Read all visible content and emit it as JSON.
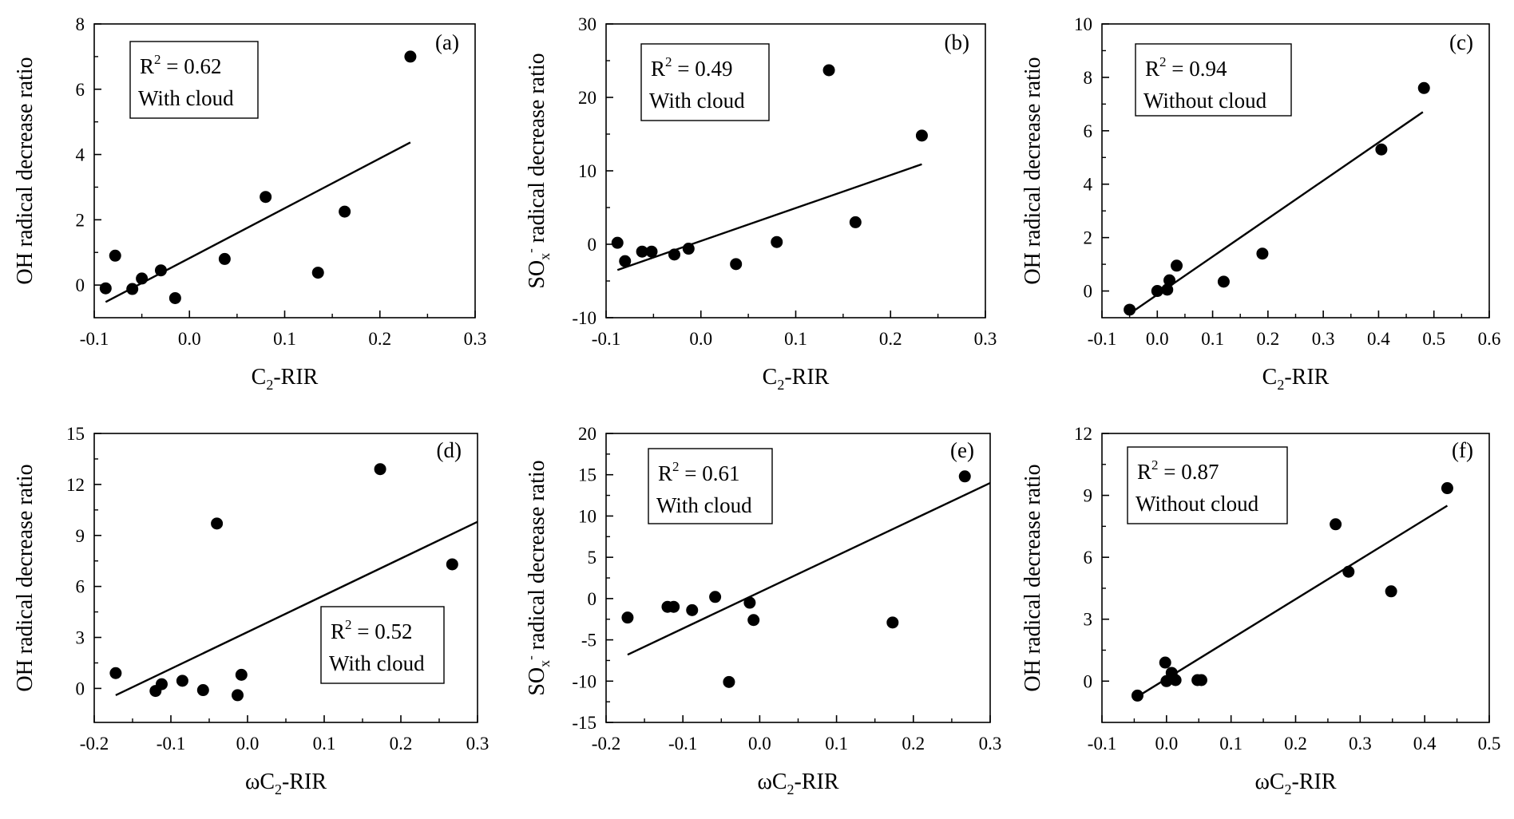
{
  "chart_data": [
    {
      "type": "scatter",
      "panel": "(a)",
      "xlabel": {
        "pre": "C",
        "sub": "2",
        "post": "-RIR"
      },
      "ylabel": {
        "pre": "OH radical decrease ratio"
      },
      "xlim": [
        -0.1,
        0.3
      ],
      "xticks": [
        -0.1,
        0.0,
        0.1,
        0.2,
        0.3
      ],
      "ylim": [
        -1,
        8
      ],
      "yticks": [
        0,
        2,
        4,
        6,
        8
      ],
      "points": [
        [
          -0.088,
          -0.1
        ],
        [
          -0.078,
          0.9
        ],
        [
          -0.06,
          -0.12
        ],
        [
          -0.05,
          0.2
        ],
        [
          -0.03,
          0.45
        ],
        [
          -0.015,
          -0.4
        ],
        [
          0.037,
          0.8
        ],
        [
          0.08,
          2.7
        ],
        [
          0.135,
          0.38
        ],
        [
          0.163,
          2.25
        ],
        [
          0.232,
          7.0
        ]
      ],
      "fit": [
        [
          -0.088,
          -0.52
        ],
        [
          0.232,
          4.37
        ]
      ],
      "annotation": {
        "r2": "R² = 0.62",
        "r2_value": "0.62",
        "note": "With cloud"
      }
    },
    {
      "type": "scatter",
      "panel": "(b)",
      "xlabel": {
        "pre": "C",
        "sub": "2",
        "post": "-RIR"
      },
      "ylabel": {
        "pre": "SO",
        "sub": "x",
        "sup": "-",
        "post": " radical decrease ratio"
      },
      "xlim": [
        -0.1,
        0.3
      ],
      "xticks": [
        -0.1,
        0.0,
        0.1,
        0.2,
        0.3
      ],
      "ylim": [
        -10,
        30
      ],
      "yticks": [
        -10,
        0,
        10,
        20,
        30
      ],
      "points": [
        [
          -0.088,
          0.2
        ],
        [
          -0.08,
          -2.3
        ],
        [
          -0.062,
          -1.0
        ],
        [
          -0.052,
          -1.0
        ],
        [
          -0.028,
          -1.4
        ],
        [
          -0.013,
          -0.6
        ],
        [
          0.037,
          -2.7
        ],
        [
          0.08,
          0.3
        ],
        [
          0.135,
          23.7
        ],
        [
          0.163,
          3.0
        ],
        [
          0.233,
          14.8
        ]
      ],
      "fit": [
        [
          -0.088,
          -3.5
        ],
        [
          0.233,
          10.9
        ]
      ],
      "annotation": {
        "r2": "R² = 0.49",
        "r2_value": "0.49",
        "note": "With cloud"
      }
    },
    {
      "type": "scatter",
      "panel": "(c)",
      "xlabel": {
        "pre": "C",
        "sub": "2",
        "post": "-RIR"
      },
      "ylabel": {
        "pre": "OH radical decrease ratio"
      },
      "xlim": [
        -0.1,
        0.6
      ],
      "xticks": [
        -0.1,
        0.0,
        0.1,
        0.2,
        0.3,
        0.4,
        0.5,
        0.6
      ],
      "ylim": [
        -1,
        10
      ],
      "yticks": [
        0,
        2,
        4,
        6,
        8,
        10
      ],
      "points": [
        [
          -0.05,
          -0.7
        ],
        [
          0.0,
          0.0
        ],
        [
          0.018,
          0.05
        ],
        [
          0.022,
          0.4
        ],
        [
          0.035,
          0.95
        ],
        [
          0.12,
          0.35
        ],
        [
          0.19,
          1.4
        ],
        [
          0.405,
          5.3
        ],
        [
          0.482,
          7.6
        ]
      ],
      "fit": [
        [
          -0.05,
          -0.85
        ],
        [
          0.48,
          6.7
        ]
      ],
      "annotation": {
        "r2": "R² = 0.94",
        "r2_value": "0.94",
        "note": "Without cloud"
      }
    },
    {
      "type": "scatter",
      "panel": "(d)",
      "xlabel": {
        "pre": "ωC",
        "sub": "2",
        "post": "-RIR"
      },
      "ylabel": {
        "pre": "OH radical decrease ratio"
      },
      "xlim": [
        -0.2,
        0.3
      ],
      "xticks": [
        -0.2,
        -0.1,
        0.0,
        0.1,
        0.2,
        0.3
      ],
      "ylim": [
        -2,
        15
      ],
      "yticks": [
        0,
        3,
        6,
        9,
        12,
        15
      ],
      "points": [
        [
          -0.172,
          0.9
        ],
        [
          -0.12,
          -0.15
        ],
        [
          -0.112,
          0.25
        ],
        [
          -0.085,
          0.45
        ],
        [
          -0.058,
          -0.1
        ],
        [
          -0.04,
          9.7
        ],
        [
          -0.013,
          -0.4
        ],
        [
          -0.008,
          0.8
        ],
        [
          0.173,
          12.9
        ],
        [
          0.267,
          7.3
        ]
      ],
      "fit": [
        [
          -0.172,
          -0.4
        ],
        [
          0.3,
          9.8
        ]
      ],
      "annotation": {
        "r2": "R² = 0.52",
        "r2_value": "0.52",
        "note": "With cloud"
      }
    },
    {
      "type": "scatter",
      "panel": "(e)",
      "xlabel": {
        "pre": "ωC",
        "sub": "2",
        "post": "-RIR"
      },
      "ylabel": {
        "pre": "SO",
        "sub": "x",
        "sup": "-",
        "post": " radical decrease ratio"
      },
      "xlim": [
        -0.2,
        0.3
      ],
      "xticks": [
        -0.2,
        -0.1,
        0.0,
        0.1,
        0.2,
        0.3
      ],
      "ylim": [
        -15,
        20
      ],
      "yticks": [
        -15,
        -10,
        -5,
        0,
        5,
        10,
        15,
        20
      ],
      "points": [
        [
          -0.172,
          -2.3
        ],
        [
          -0.12,
          -1.0
        ],
        [
          -0.112,
          -1.0
        ],
        [
          -0.088,
          -1.4
        ],
        [
          -0.058,
          0.2
        ],
        [
          -0.04,
          -10.1
        ],
        [
          -0.013,
          -0.5
        ],
        [
          -0.008,
          -2.6
        ],
        [
          0.173,
          -2.9
        ],
        [
          0.267,
          14.8
        ]
      ],
      "fit": [
        [
          -0.172,
          -6.8
        ],
        [
          0.3,
          14.0
        ]
      ],
      "annotation": {
        "r2": "R² = 0.61",
        "r2_value": "0.61",
        "note": "With cloud"
      }
    },
    {
      "type": "scatter",
      "panel": "(f)",
      "xlabel": {
        "pre": "ωC",
        "sub": "2",
        "post": "-RIR"
      },
      "ylabel": {
        "pre": "OH radical decrease ratio"
      },
      "xlim": [
        -0.1,
        0.5
      ],
      "xticks": [
        -0.1,
        0.0,
        0.1,
        0.2,
        0.3,
        0.4,
        0.5
      ],
      "ylim": [
        -2,
        12
      ],
      "yticks": [
        0,
        3,
        6,
        9,
        12
      ],
      "points": [
        [
          -0.045,
          -0.7
        ],
        [
          -0.002,
          0.9
        ],
        [
          0.0,
          0.0
        ],
        [
          0.008,
          0.4
        ],
        [
          0.014,
          0.05
        ],
        [
          0.048,
          0.05
        ],
        [
          0.054,
          0.05
        ],
        [
          0.262,
          7.6
        ],
        [
          0.282,
          5.3
        ],
        [
          0.348,
          4.35
        ],
        [
          0.435,
          9.35
        ]
      ],
      "fit": [
        [
          -0.045,
          -0.75
        ],
        [
          0.435,
          8.5
        ]
      ],
      "annotation": {
        "r2": "R² = 0.87",
        "r2_value": "0.87",
        "note": "Without cloud"
      }
    }
  ]
}
